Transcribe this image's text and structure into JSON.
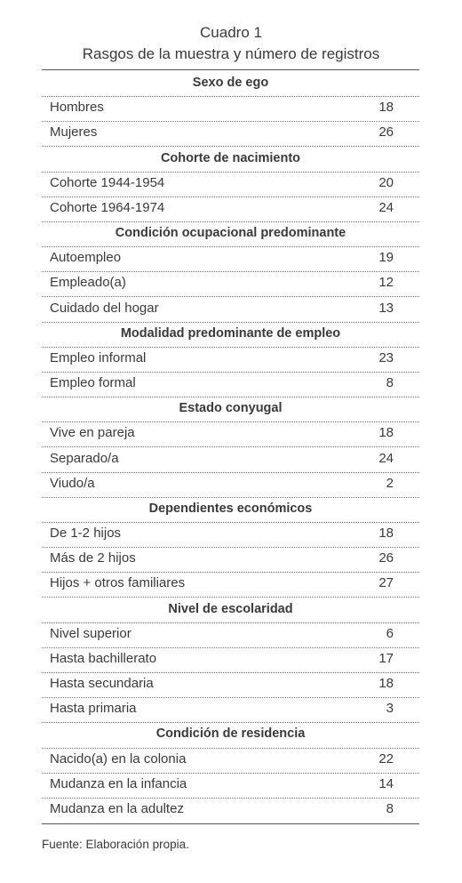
{
  "title": [
    "Cuadro 1",
    "Rasgos de la muestra y número de registros"
  ],
  "sections": [
    {
      "heading": "Sexo de ego",
      "rows": [
        [
          "Hombres",
          18
        ],
        [
          "Mujeres",
          26
        ]
      ]
    },
    {
      "heading": "Cohorte de nacimiento",
      "rows": [
        [
          "Cohorte 1944-1954",
          20
        ],
        [
          "Cohorte 1964-1974",
          24
        ]
      ]
    },
    {
      "heading": "Condición ocupacional predominante",
      "rows": [
        [
          "Autoempleo",
          19
        ],
        [
          "Empleado(a)",
          12
        ],
        [
          "Cuidado del hogar",
          13
        ]
      ]
    },
    {
      "heading": "Modalidad predominante de empleo",
      "rows": [
        [
          "Empleo informal",
          23
        ],
        [
          "Empleo formal",
          8
        ]
      ]
    },
    {
      "heading": "Estado conyugal",
      "rows": [
        [
          "Vive en pareja",
          18
        ],
        [
          "Separado/a",
          24
        ],
        [
          "Viudo/a",
          2
        ]
      ]
    },
    {
      "heading": "Dependientes económicos",
      "rows": [
        [
          "De 1-2 hijos",
          18
        ],
        [
          "Más de 2 hijos",
          26
        ],
        [
          "Hijos + otros familiares",
          27
        ]
      ]
    },
    {
      "heading": "Nivel de escolaridad",
      "rows": [
        [
          "Nivel superior",
          6
        ],
        [
          "Hasta bachillerato",
          17
        ],
        [
          "Hasta secundaria",
          18
        ],
        [
          "Hasta primaria",
          3
        ]
      ]
    },
    {
      "heading": "Condición de residencia",
      "rows": [
        [
          "Nacido(a) en la colonia",
          22
        ],
        [
          "Mudanza en la infancia",
          14
        ],
        [
          "Mudanza en la adultez",
          8
        ]
      ]
    }
  ],
  "source": "Fuente: Elaboración propia."
}
